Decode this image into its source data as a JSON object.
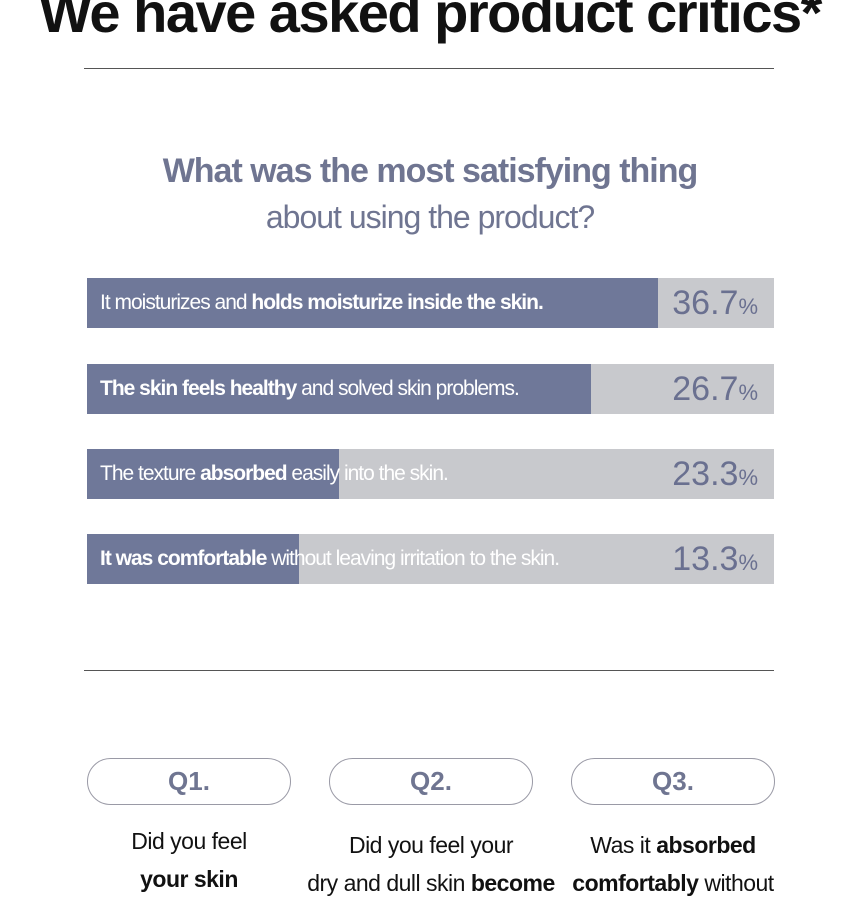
{
  "header": {
    "title": "We have asked product critics*"
  },
  "survey": {
    "question_line1": "What was the most satisfying thing",
    "question_line2": "about using the product?",
    "colors": {
      "fill": "#6f7899",
      "track": "#c8c9cd",
      "text": "#6f7591"
    },
    "answers": [
      {
        "segments": [
          {
            "t": "It moisturizes and ",
            "b": false
          },
          {
            "t": "holds moisturize inside the skin.",
            "b": true
          }
        ],
        "percent": 36.7,
        "percent_text": "36.7",
        "unit": "%"
      },
      {
        "segments": [
          {
            "t": "The skin feels healthy",
            "b": true
          },
          {
            "t": " and solved skin problems.",
            "b": false
          }
        ],
        "percent": 26.7,
        "percent_text": "26.7",
        "unit": "%"
      },
      {
        "segments": [
          {
            "t": "The texture ",
            "b": false
          },
          {
            "t": "absorbed",
            "b": true
          },
          {
            "t": " easily into the skin.",
            "b": false
          }
        ],
        "percent": 23.3,
        "percent_text": "23.3",
        "unit": "%"
      },
      {
        "segments": [
          {
            "t": "It was comfortable",
            "b": true
          },
          {
            "t": " without leaving irritation to the skin.",
            "b": false
          }
        ],
        "percent": 13.3,
        "percent_text": "13.3",
        "unit": "%"
      }
    ]
  },
  "questions": [
    {
      "label": "Q1.",
      "lines": [
        [
          {
            "t": "Did you feel",
            "b": false
          }
        ],
        [
          {
            "t": "your skin",
            "b": true
          }
        ]
      ]
    },
    {
      "label": "Q2.",
      "lines": [
        [
          {
            "t": "Did you feel your",
            "b": false
          }
        ],
        [
          {
            "t": "dry and dull skin ",
            "b": false
          },
          {
            "t": "become",
            "b": true
          }
        ]
      ]
    },
    {
      "label": "Q3.",
      "lines": [
        [
          {
            "t": "Was it ",
            "b": false
          },
          {
            "t": "absorbed",
            "b": true
          }
        ],
        [
          {
            "t": "comfortably",
            "b": true
          },
          {
            "t": " without",
            "b": false
          }
        ]
      ]
    }
  ]
}
